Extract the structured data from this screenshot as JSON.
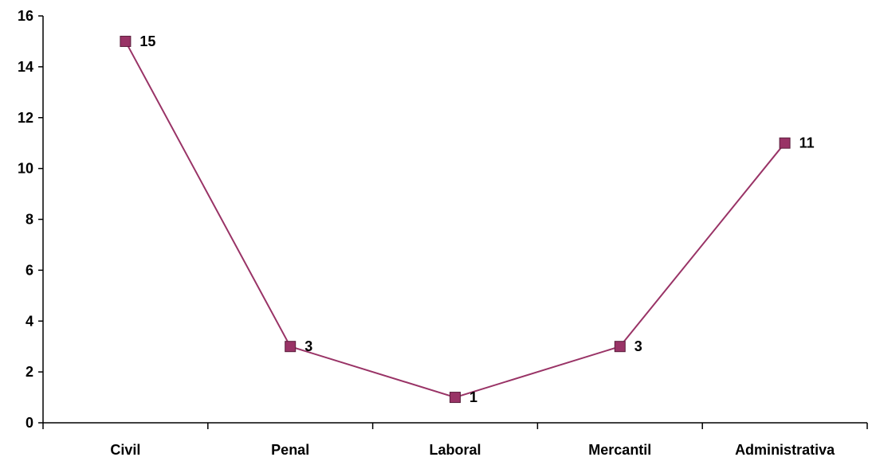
{
  "chart_data": {
    "type": "line",
    "categories": [
      "Civil",
      "Penal",
      "Laboral",
      "Mercantil",
      "Administrativa"
    ],
    "series": [
      {
        "values": [
          15,
          3,
          1,
          3,
          11
        ],
        "color": "#993366",
        "marker": "square"
      }
    ],
    "data_labels": [
      "15",
      "3",
      "1",
      "3",
      "11"
    ],
    "y_ticks": [
      0,
      2,
      4,
      6,
      8,
      10,
      12,
      14,
      16
    ],
    "ylim": [
      0,
      16
    ],
    "grid": false,
    "legend": "none"
  }
}
